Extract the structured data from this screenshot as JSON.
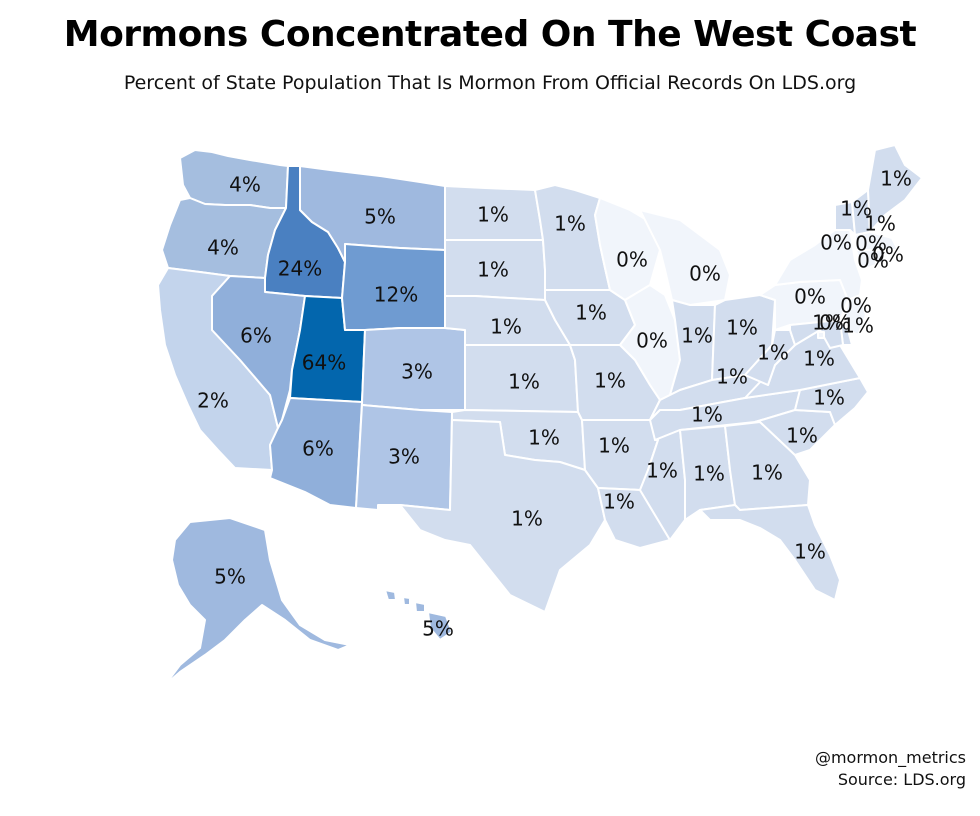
{
  "title": "Mormons Concentrated On The West Coast",
  "subtitle": "Percent of State Population That Is Mormon From Official Records On LDS.org",
  "credits": {
    "handle": "@mormon_metrics",
    "source": "Source: LDS.org"
  },
  "color_scale": {
    "0": "#f1f5fb",
    "1": "#d2ddee",
    "2": "#c3d4ec",
    "3": "#afc5e6",
    "4": "#a5bedf",
    "5": "#9fb9df",
    "6": "#90afda",
    "12": "#6f9bd1",
    "24": "#4a80c1",
    "64": "#0366ad"
  },
  "chart_data": {
    "type": "choropleth",
    "unit": "%",
    "states": [
      {
        "state": "WA",
        "value": 4,
        "label": "4%"
      },
      {
        "state": "OR",
        "value": 4,
        "label": "4%"
      },
      {
        "state": "CA",
        "value": 2,
        "label": "2%"
      },
      {
        "state": "ID",
        "value": 24,
        "label": "24%"
      },
      {
        "state": "NV",
        "value": 6,
        "label": "6%"
      },
      {
        "state": "UT",
        "value": 64,
        "label": "64%"
      },
      {
        "state": "AZ",
        "value": 6,
        "label": "6%"
      },
      {
        "state": "MT",
        "value": 5,
        "label": "5%"
      },
      {
        "state": "WY",
        "value": 12,
        "label": "12%"
      },
      {
        "state": "CO",
        "value": 3,
        "label": "3%"
      },
      {
        "state": "NM",
        "value": 3,
        "label": "3%"
      },
      {
        "state": "ND",
        "value": 1,
        "label": "1%"
      },
      {
        "state": "SD",
        "value": 1,
        "label": "1%"
      },
      {
        "state": "NE",
        "value": 1,
        "label": "1%"
      },
      {
        "state": "KS",
        "value": 1,
        "label": "1%"
      },
      {
        "state": "OK",
        "value": 1,
        "label": "1%"
      },
      {
        "state": "TX",
        "value": 1,
        "label": "1%"
      },
      {
        "state": "MN",
        "value": 1,
        "label": "1%"
      },
      {
        "state": "IA",
        "value": 1,
        "label": "1%"
      },
      {
        "state": "MO",
        "value": 1,
        "label": "1%"
      },
      {
        "state": "AR",
        "value": 1,
        "label": "1%"
      },
      {
        "state": "LA",
        "value": 1,
        "label": "1%"
      },
      {
        "state": "WI",
        "value": 0,
        "label": "0%"
      },
      {
        "state": "IL",
        "value": 0,
        "label": "0%"
      },
      {
        "state": "MI",
        "value": 0,
        "label": "0%"
      },
      {
        "state": "IN",
        "value": 1,
        "label": "1%"
      },
      {
        "state": "OH",
        "value": 1,
        "label": "1%"
      },
      {
        "state": "KY",
        "value": 1,
        "label": "1%"
      },
      {
        "state": "TN",
        "value": 1,
        "label": "1%"
      },
      {
        "state": "MS",
        "value": 1,
        "label": "1%"
      },
      {
        "state": "AL",
        "value": 1,
        "label": "1%"
      },
      {
        "state": "GA",
        "value": 1,
        "label": "1%"
      },
      {
        "state": "FL",
        "value": 1,
        "label": "1%"
      },
      {
        "state": "SC",
        "value": 1,
        "label": "1%"
      },
      {
        "state": "NC",
        "value": 1,
        "label": "1%"
      },
      {
        "state": "VA",
        "value": 1,
        "label": "1%"
      },
      {
        "state": "WV",
        "value": 1,
        "label": "1%"
      },
      {
        "state": "PA",
        "value": 0,
        "label": "0%"
      },
      {
        "state": "NY",
        "value": 0,
        "label": "0%"
      },
      {
        "state": "VT",
        "value": 1,
        "label": "1%"
      },
      {
        "state": "NH",
        "value": 1,
        "label": "1%"
      },
      {
        "state": "ME",
        "value": 1,
        "label": "1%"
      },
      {
        "state": "MA",
        "value": 0,
        "label": "0%"
      },
      {
        "state": "CT",
        "value": 0,
        "label": "0%"
      },
      {
        "state": "RI",
        "value": 0,
        "label": "0%"
      },
      {
        "state": "NJ",
        "value": 0,
        "label": "0%"
      },
      {
        "state": "DE",
        "value": 1,
        "label": "1%"
      },
      {
        "state": "MD",
        "value": 1,
        "label": "1%"
      },
      {
        "state": "DC",
        "value": 0,
        "label": "0%"
      },
      {
        "state": "AK",
        "value": 5,
        "label": "5%"
      },
      {
        "state": "HI",
        "value": 5,
        "label": "5%"
      }
    ]
  }
}
